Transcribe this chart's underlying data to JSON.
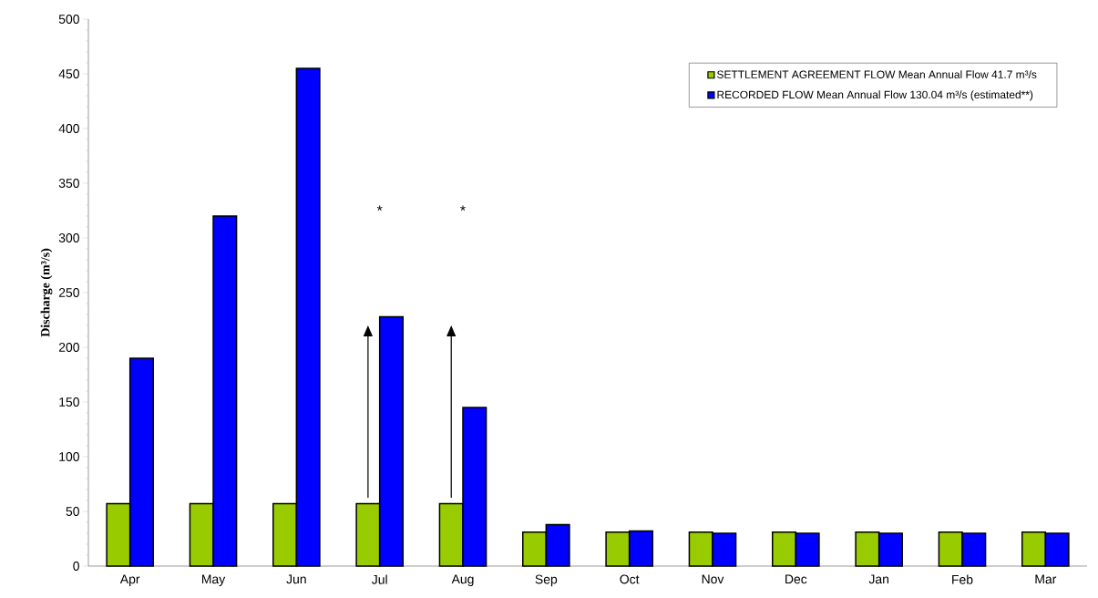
{
  "chart_data": {
    "type": "bar",
    "ylabel": "Discharge (m³/s)",
    "categories": [
      "Apr",
      "May",
      "Jun",
      "Jul",
      "Aug",
      "Sep",
      "Oct",
      "Nov",
      "Dec",
      "Jan",
      "Feb",
      "Mar"
    ],
    "series": [
      {
        "name": "SETTLEMENT AGREEMENT FLOW Mean Annual Flow 41.7 m³/s",
        "color": "#99cc00",
        "values": [
          57,
          57,
          57,
          57,
          57,
          31,
          31,
          31,
          31,
          31,
          31,
          31
        ]
      },
      {
        "name": "RECORDED FLOW Mean Annual Flow 130.04 m³/s (estimated**)",
        "color": "#0000ff",
        "values": [
          190,
          320,
          455,
          228,
          145,
          38,
          32,
          30,
          30,
          30,
          30,
          30
        ]
      }
    ],
    "ylim": [
      0,
      500
    ],
    "yticks": [
      0,
      50,
      100,
      150,
      200,
      250,
      300,
      350,
      400,
      450,
      500
    ],
    "annotations": [
      "*",
      "*"
    ],
    "legend": "top right",
    "grid": false
  }
}
